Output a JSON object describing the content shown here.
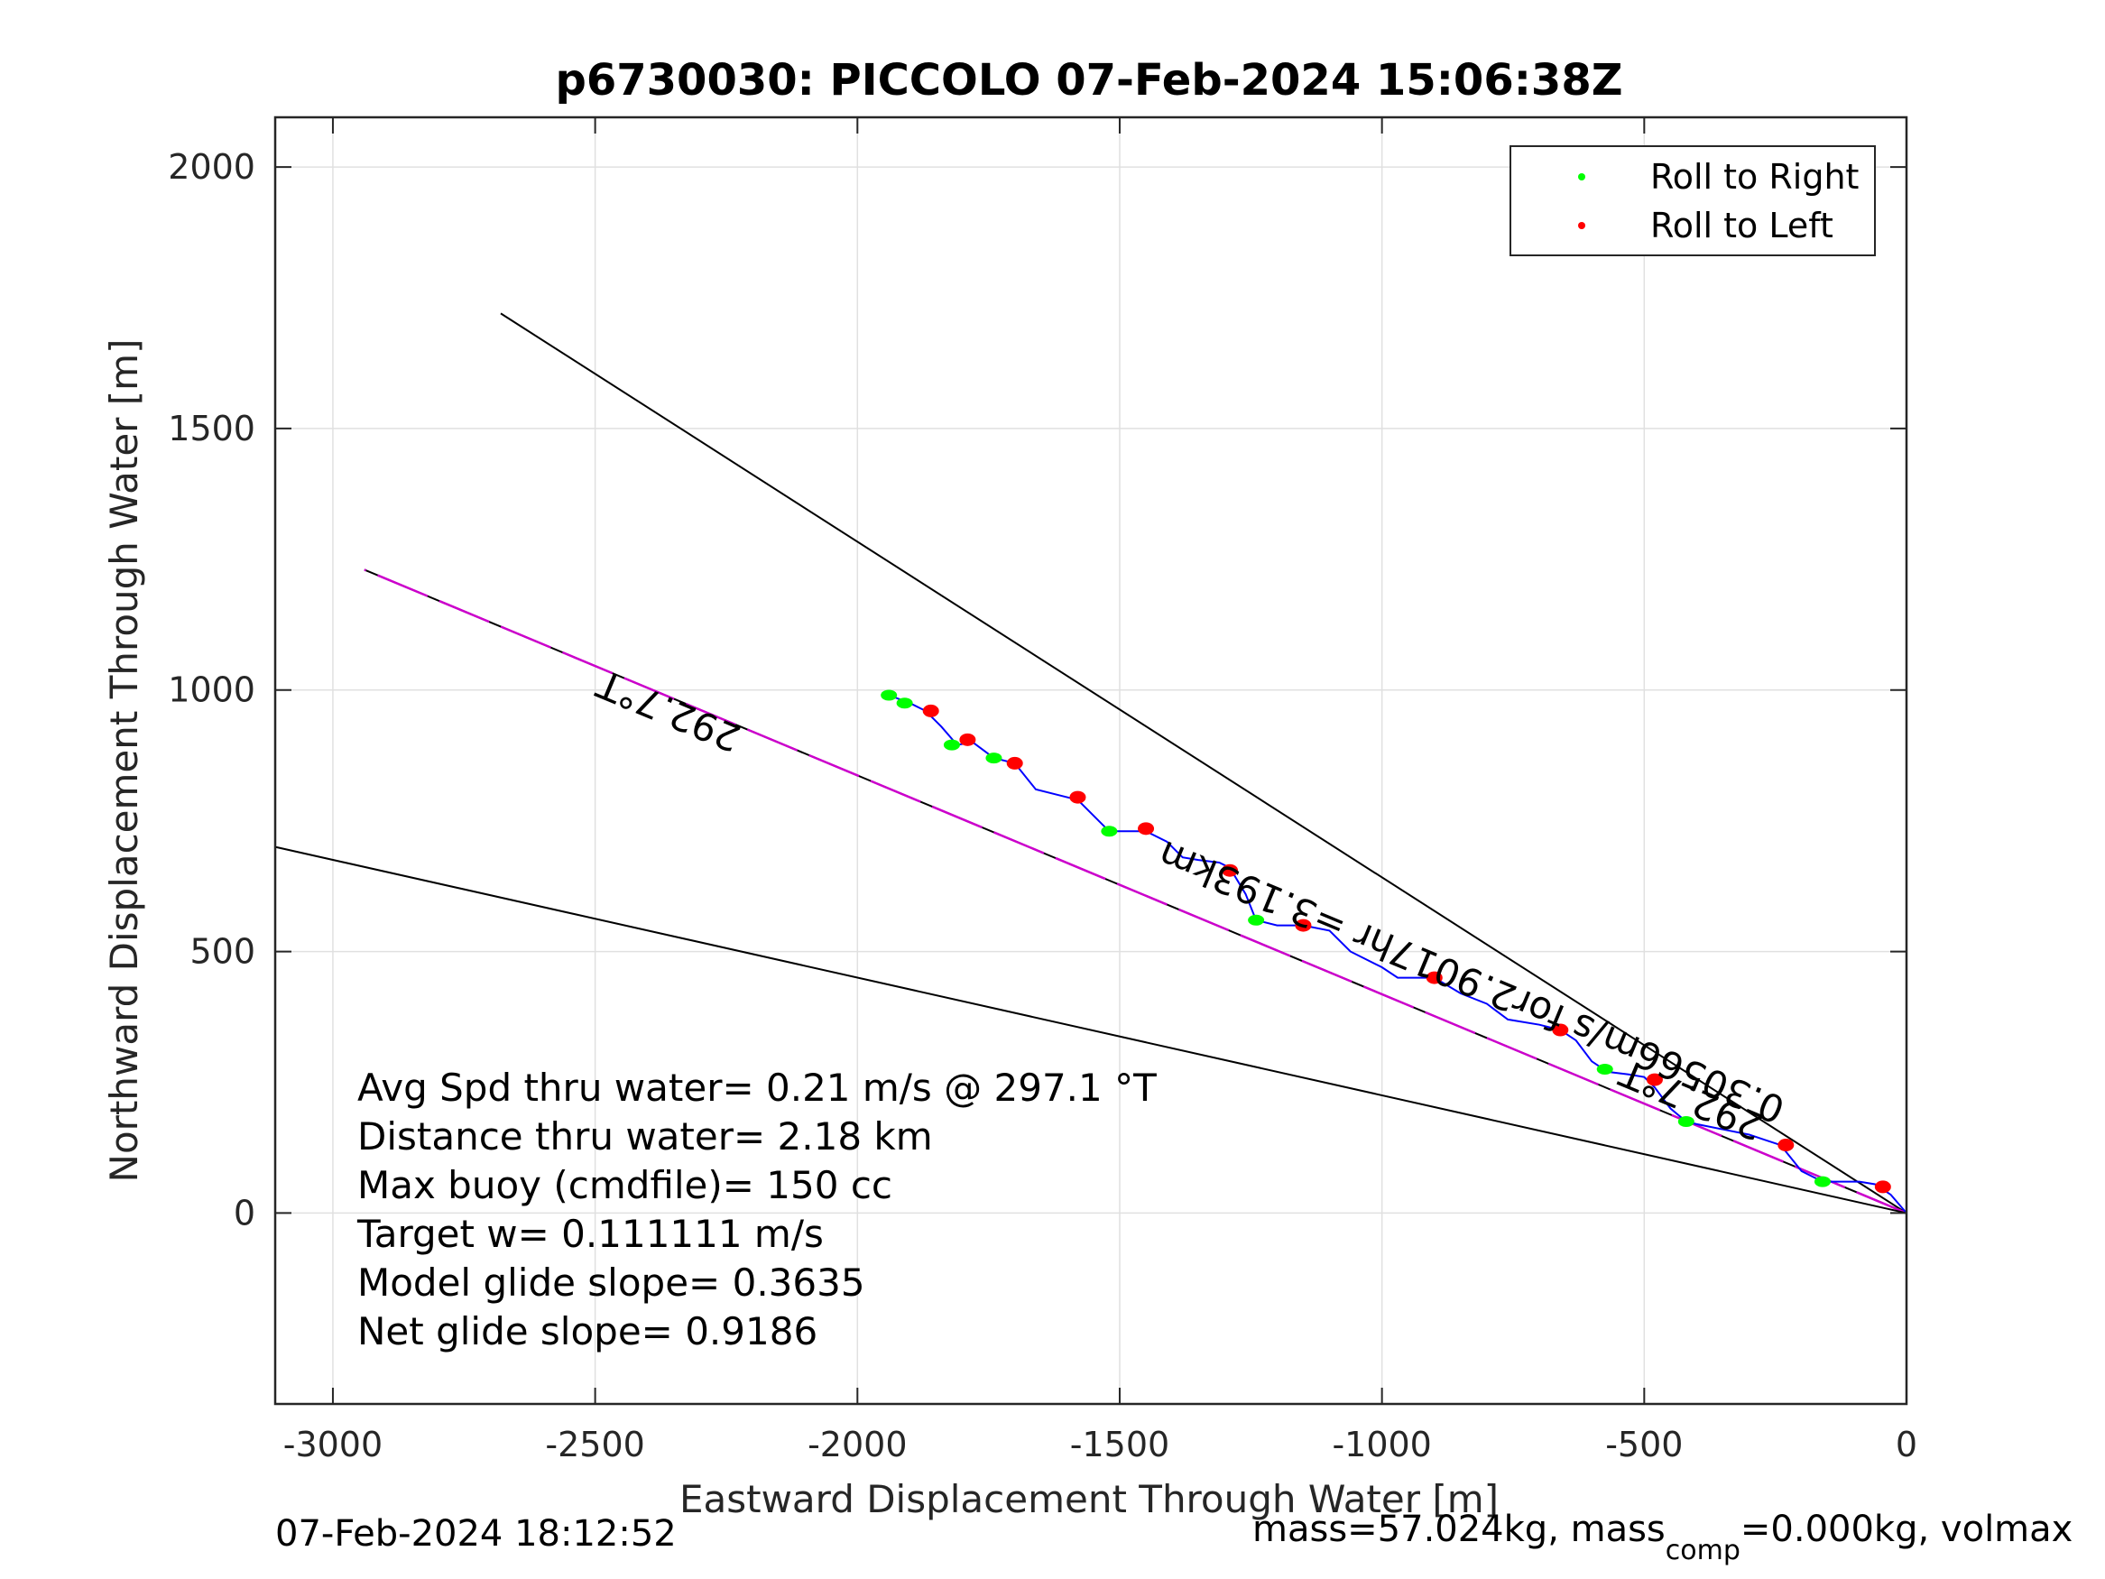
{
  "chart_data": {
    "type": "scatter",
    "title": "p6730030: PICCOLO 07-Feb-2024 15:06:38Z",
    "xlabel": "Eastward Displacement Through Water [m]",
    "ylabel": "Northward Displacement Through Water [m]",
    "xlim": [
      -3110,
      0
    ],
    "ylim": [
      -365,
      2095
    ],
    "xticks": [
      -3000,
      -2500,
      -2000,
      -1500,
      -1000,
      -500,
      0
    ],
    "yticks": [
      0,
      500,
      1000,
      1500,
      2000
    ],
    "xtick_labels": [
      "-3000",
      "-2500",
      "-2000",
      "-1500",
      "-1000",
      "-500",
      "0"
    ],
    "ytick_labels": [
      "0",
      "500",
      "1000",
      "1500",
      "2000"
    ],
    "grid": true,
    "legend_position": "top-right",
    "legend": [
      {
        "label": "Roll to Right",
        "color": "#00ff00"
      },
      {
        "label": "Roll to Left",
        "color": "#ff0000"
      }
    ],
    "colors": {
      "track": "#0000ff",
      "heading_line": "#cc00cc",
      "bounds": "#000000"
    },
    "track": {
      "x": [
        0,
        -30,
        -60,
        -90,
        -130,
        -160,
        -200,
        -240,
        -270,
        -300,
        -350,
        -400,
        -420,
        -450,
        -480,
        -500,
        -530,
        -570,
        -600,
        -630,
        -660,
        -700,
        -760,
        -800,
        -850,
        -900,
        -930,
        -970,
        -1000,
        -1060,
        -1100,
        -1150,
        -1200,
        -1240,
        -1260,
        -1290,
        -1310,
        -1350,
        -1380,
        -1410,
        -1450,
        -1480,
        -1520,
        -1540,
        -1580,
        -1620,
        -1660,
        -1700,
        -1740,
        -1780,
        -1810,
        -1840,
        -1870,
        -1900,
        -1940
      ],
      "y": [
        0,
        35,
        55,
        60,
        60,
        60,
        80,
        130,
        140,
        150,
        160,
        170,
        175,
        200,
        240,
        260,
        265,
        270,
        290,
        330,
        350,
        360,
        370,
        400,
        420,
        450,
        450,
        450,
        470,
        500,
        540,
        550,
        550,
        560,
        610,
        660,
        670,
        675,
        680,
        710,
        730,
        730,
        730,
        750,
        790,
        800,
        810,
        860,
        870,
        900,
        895,
        930,
        960,
        975,
        990
      ]
    },
    "roll_right": {
      "x": [
        -160,
        -420,
        -575,
        -1240,
        -1520,
        -1740,
        -1820,
        -1910,
        -1940
      ],
      "y": [
        60,
        175,
        275,
        560,
        730,
        870,
        895,
        975,
        990
      ]
    },
    "roll_left": {
      "x": [
        -45,
        -230,
        -480,
        -660,
        -900,
        -1150,
        -1290,
        -1450,
        -1580,
        -1700,
        -1790,
        -1860
      ],
      "y": [
        50,
        130,
        255,
        350,
        450,
        550,
        655,
        735,
        795,
        860,
        905,
        960
      ]
    },
    "lines": [
      {
        "name": "upper-bound",
        "x": [
          0,
          -2680
        ],
        "y": [
          0,
          1720
        ]
      },
      {
        "name": "heading",
        "x": [
          0,
          -2940
        ],
        "y": [
          0,
          1230
        ]
      },
      {
        "name": "lower-bound",
        "x": [
          0,
          -3110
        ],
        "y": [
          0,
          700
        ]
      }
    ],
    "annotations": {
      "heading_far": "292.7°T",
      "heading_near": "292.7°T",
      "speed": "0.30566m/s for2.9017hr =3.193km"
    },
    "stats": [
      "Avg Spd thru water=  0.21 m/s @ 297.1 °T",
      "Distance thru water=  2.18 km",
      "Max buoy (cmdfile)= 150 cc",
      "Target w= 0.111111 m/s",
      "Model glide slope= 0.3635",
      "Net glide slope= 0.9186"
    ],
    "footer": {
      "timestamp": "07-Feb-2024 18:12:52",
      "mass_prefix": "mass=57.024kg, mass",
      "mass_sub": "comp",
      "mass_suffix": "=0.000kg, volmax"
    }
  }
}
